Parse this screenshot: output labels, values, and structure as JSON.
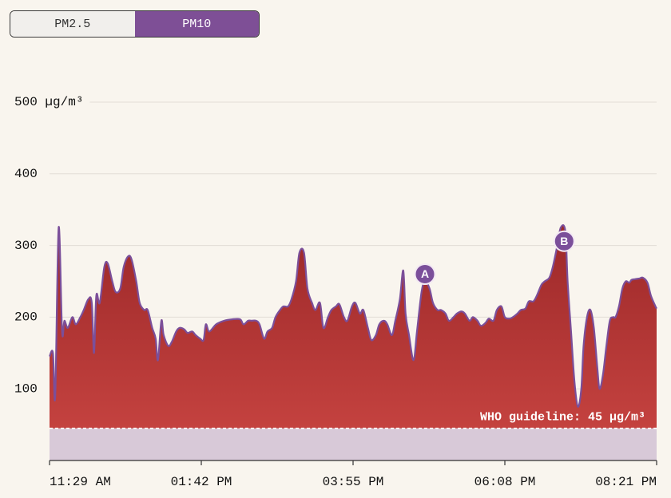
{
  "controls": {
    "options": [
      "PM2.5",
      "PM10"
    ],
    "selected": 1
  },
  "chart_data": {
    "type": "area",
    "color": "#7b4f9a",
    "fill_top": "#9c2829",
    "fill_bottom": "#c4423f",
    "below_guideline_color": "#d8c9d8",
    "ylim": [
      0,
      500
    ],
    "yticks": [
      100,
      200,
      300,
      400,
      {
        "value": 500,
        "label": "500 µg/m³"
      }
    ],
    "xlim": [
      689,
      1221
    ],
    "xticks": [
      {
        "value": 689,
        "label": "11:29 AM"
      },
      {
        "value": 822,
        "label": "01:42 PM"
      },
      {
        "value": 955,
        "label": "03:55 PM"
      },
      {
        "value": 1088,
        "label": "06:08 PM"
      },
      {
        "value": 1221,
        "label": "08:21 PM"
      }
    ],
    "grid": true,
    "guideline": {
      "value": 45,
      "label": "WHO guideline: 45 µg/m³"
    },
    "x": [
      689,
      692,
      694,
      697,
      700,
      702,
      705,
      709,
      712,
      716,
      719,
      723,
      726,
      728,
      730,
      733,
      737,
      740,
      744,
      747,
      751,
      754,
      758,
      761,
      765,
      768,
      772,
      775,
      779,
      782,
      784,
      787,
      789,
      793,
      796,
      800,
      803,
      807,
      810,
      814,
      817,
      821,
      824,
      826,
      829,
      835,
      842,
      849,
      856,
      859,
      863,
      866,
      870,
      873,
      877,
      880,
      884,
      887,
      891,
      894,
      898,
      901,
      905,
      908,
      912,
      915,
      919,
      922,
      926,
      929,
      933,
      936,
      940,
      943,
      947,
      950,
      954,
      957,
      961,
      964,
      968,
      971,
      975,
      978,
      982,
      985,
      989,
      992,
      996,
      999,
      1001,
      1004,
      1008,
      1011,
      1015,
      1018,
      1022,
      1025,
      1029,
      1032,
      1036,
      1039,
      1043,
      1046,
      1050,
      1053,
      1057,
      1060,
      1064,
      1067,
      1071,
      1074,
      1078,
      1081,
      1085,
      1088,
      1092,
      1095,
      1099,
      1102,
      1106,
      1109,
      1113,
      1116,
      1120,
      1123,
      1127,
      1130,
      1134,
      1137,
      1141,
      1143,
      1146,
      1149,
      1152,
      1155,
      1157,
      1160,
      1163,
      1166,
      1169,
      1171,
      1174,
      1177,
      1180,
      1183,
      1185,
      1188,
      1191,
      1194,
      1197,
      1199,
      1202,
      1206,
      1209,
      1213,
      1216,
      1220,
      1221
    ],
    "values": [
      145,
      150,
      90,
      325,
      180,
      195,
      185,
      200,
      190,
      200,
      210,
      225,
      220,
      150,
      230,
      220,
      270,
      275,
      250,
      235,
      240,
      270,
      285,
      280,
      250,
      220,
      210,
      210,
      185,
      170,
      140,
      195,
      175,
      160,
      165,
      180,
      185,
      183,
      178,
      180,
      175,
      170,
      168,
      190,
      180,
      190,
      195,
      197,
      197,
      190,
      195,
      195,
      195,
      190,
      170,
      180,
      185,
      200,
      210,
      215,
      215,
      225,
      250,
      290,
      290,
      240,
      220,
      210,
      220,
      185,
      200,
      210,
      215,
      218,
      200,
      195,
      215,
      220,
      205,
      210,
      185,
      168,
      175,
      190,
      195,
      190,
      175,
      195,
      225,
      265,
      205,
      175,
      140,
      180,
      235,
      250,
      240,
      220,
      210,
      210,
      205,
      195,
      200,
      205,
      208,
      205,
      195,
      200,
      195,
      188,
      192,
      198,
      195,
      210,
      215,
      200,
      198,
      200,
      205,
      210,
      212,
      222,
      222,
      230,
      245,
      250,
      255,
      270,
      300,
      325,
      320,
      250,
      180,
      110,
      75,
      100,
      160,
      200,
      210,
      185,
      130,
      100,
      120,
      160,
      195,
      200,
      200,
      215,
      240,
      250,
      248,
      252,
      253,
      254,
      255,
      248,
      230,
      215,
      212
    ],
    "annotations": [
      {
        "label": "A",
        "x": 1018,
        "y": 260
      },
      {
        "label": "B",
        "x": 1140,
        "y": 306
      }
    ]
  }
}
